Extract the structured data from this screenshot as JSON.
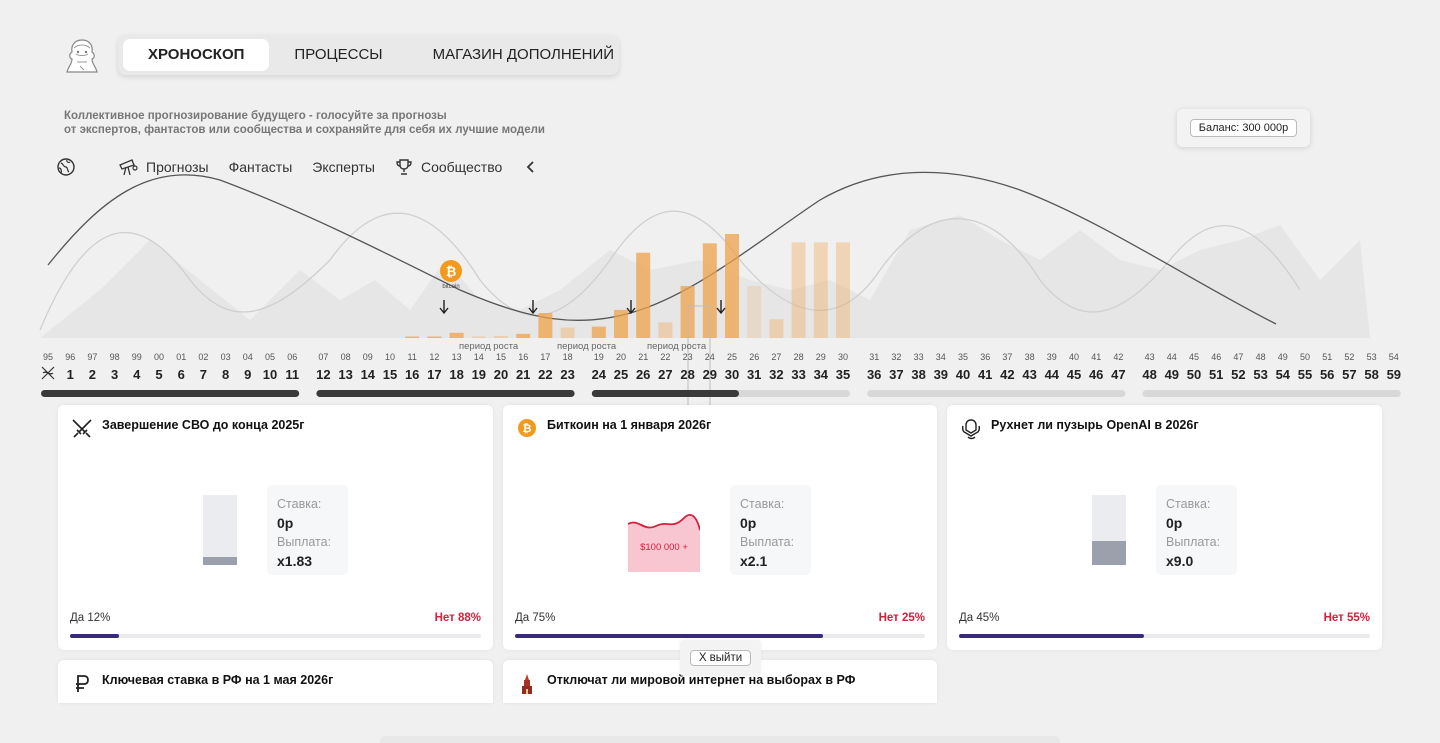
{
  "nav": {
    "tabs": [
      {
        "label": "ХРОНОСКОП",
        "active": true
      },
      {
        "label": "ПРОЦЕССЫ",
        "active": false
      },
      {
        "label": "МАГАЗИН ДОПОЛНЕНИЙ",
        "active": false
      }
    ]
  },
  "tagline": {
    "line1": "Коллективное прогнозирование будущего - голосуйте за прогнозы",
    "line2": "от экспертов, фантастов или сообщества и сохраняйте для себя их лучшие модели"
  },
  "balance": "Баланс: 300 000р",
  "filters": {
    "forecasts": "Прогнозы",
    "writers": "Фантасты",
    "experts": "Эксперты",
    "community": "Сообщество"
  },
  "timeline": {
    "small_years": [
      "95",
      "96",
      "97",
      "98",
      "99",
      "00",
      "01",
      "02",
      "03",
      "04",
      "05",
      "06",
      "07",
      "08",
      "09",
      "10",
      "11",
      "12",
      "13",
      "14",
      "15",
      "16",
      "17",
      "18",
      "19",
      "20",
      "21",
      "22",
      "23",
      "24",
      "25",
      "26",
      "27",
      "28",
      "29",
      "30",
      "31",
      "32",
      "33",
      "34",
      "35",
      "36",
      "37",
      "38",
      "39",
      "40",
      "41",
      "42",
      "43",
      "44",
      "45",
      "46",
      "47",
      "48",
      "49",
      "50",
      "51",
      "52",
      "53",
      "54"
    ],
    "big_years": [
      "1",
      "2",
      "3",
      "4",
      "5",
      "6",
      "7",
      "8",
      "9",
      "10",
      "11",
      "12",
      "13",
      "14",
      "15",
      "16",
      "17",
      "18",
      "19",
      "20",
      "21",
      "22",
      "23",
      "24",
      "25",
      "26",
      "27",
      "28",
      "29",
      "30",
      "31",
      "32",
      "33",
      "34",
      "35",
      "36",
      "37",
      "38",
      "39",
      "40",
      "41",
      "42",
      "43",
      "44",
      "45",
      "46",
      "47",
      "48",
      "49",
      "50",
      "51",
      "52",
      "53",
      "54",
      "55",
      "56",
      "57",
      "58",
      "59"
    ],
    "growth_label": "период роста",
    "bitcoin_label": "bitcoin",
    "bar_values": [
      0.01,
      0.01,
      0.05,
      0.01,
      0.02,
      0.04,
      0.24,
      0.1,
      0.11,
      0.27,
      0.82,
      0.15,
      0.5,
      0.91,
      1.0,
      0.5,
      0.18,
      0.92,
      0.92,
      0.92
    ],
    "bar_opacity": [
      0.75,
      0.75,
      0.75,
      0.35,
      0.35,
      0.75,
      0.75,
      0.35,
      0.75,
      0.75,
      0.75,
      0.35,
      0.75,
      0.75,
      0.75,
      0.2,
      0.35,
      0.35,
      0.35,
      0.35
    ],
    "segment_colors": [
      "#3a3a3a",
      "#a7a7a7"
    ]
  },
  "cards": [
    {
      "title": "Завершение СВО до конца 2025г",
      "icon": "crossed-swords-icon",
      "stake_label": "Ставка:",
      "stake": "0р",
      "payout_label": "Выплата:",
      "payout": "x1.83",
      "yes": "Да 12%",
      "no": "Нет 88%",
      "yes_fraction": 0.12,
      "level_fraction": 0.12
    },
    {
      "title": "Биткоин на 1 января 2026г",
      "icon": "bitcoin-icon",
      "stake_label": "Ставка:",
      "stake": "0р",
      "payout_label": "Выплата:",
      "payout": "x2.1",
      "yes": "Да 75%",
      "no": "Нет 25%",
      "yes_fraction": 0.75,
      "mini_label": "$100 000 +"
    },
    {
      "title": "Рухнет ли пузырь OpenAI в 2026г",
      "icon": "openai-icon",
      "stake_label": "Ставка:",
      "stake": "0р",
      "payout_label": "Выплата:",
      "payout": "x9.0",
      "yes": "Да 45%",
      "no": "Нет 55%",
      "yes_fraction": 0.45,
      "level_fraction": 0.34
    },
    {
      "title": "Ключевая ставка в РФ на 1 мая 2026г",
      "icon": "ruble-icon"
    },
    {
      "title": "Отключат ли мировой интернет на выборах в РФ",
      "icon": "kremlin-tower-icon"
    }
  ],
  "exit_label": "X выйти"
}
